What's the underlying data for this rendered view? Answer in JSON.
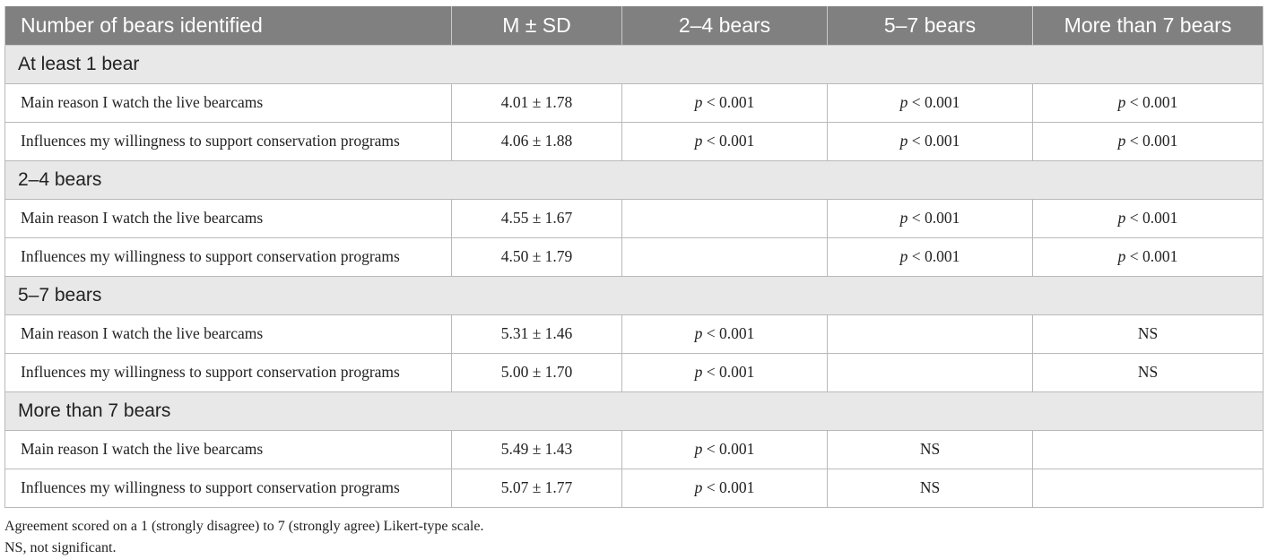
{
  "table": {
    "headers": [
      "Number of bears identified",
      "M ± SD",
      "2–4 bears",
      "5–7 bears",
      "More than 7 bears"
    ],
    "sections": [
      {
        "title": "At least 1 bear",
        "rows": [
          {
            "label": "Main reason I watch the live bearcams",
            "msd": "4.01 ± 1.78",
            "cells": [
              "p < 0.001",
              "p < 0.001",
              "p < 0.001"
            ]
          },
          {
            "label": "Influences my willingness to support conservation programs",
            "msd": "4.06 ± 1.88",
            "cells": [
              "p < 0.001",
              "p < 0.001",
              "p < 0.001"
            ]
          }
        ]
      },
      {
        "title": "2–4 bears",
        "rows": [
          {
            "label": "Main reason I watch the live bearcams",
            "msd": "4.55 ± 1.67",
            "cells": [
              "",
              "p < 0.001",
              "p < 0.001"
            ]
          },
          {
            "label": "Influences my willingness to support conservation programs",
            "msd": "4.50 ± 1.79",
            "cells": [
              "",
              "p < 0.001",
              "p < 0.001"
            ]
          }
        ]
      },
      {
        "title": "5–7 bears",
        "rows": [
          {
            "label": "Main reason I watch the live bearcams",
            "msd": "5.31 ± 1.46",
            "cells": [
              "p < 0.001",
              "",
              "NS"
            ]
          },
          {
            "label": "Influences my willingness to support conservation programs",
            "msd": "5.00 ± 1.70",
            "cells": [
              "p < 0.001",
              "",
              "NS"
            ]
          }
        ]
      },
      {
        "title": "More than 7 bears",
        "rows": [
          {
            "label": "Main reason I watch the live bearcams",
            "msd": "5.49 ± 1.43",
            "cells": [
              "p < 0.001",
              "NS",
              ""
            ]
          },
          {
            "label": "Influences my willingness to support conservation programs",
            "msd": "5.07 ± 1.77",
            "cells": [
              "p < 0.001",
              "NS",
              ""
            ]
          }
        ]
      }
    ]
  },
  "footnotes": [
    "Agreement scored on a 1 (strongly disagree) to 7 (strongly agree) Likert-type scale.",
    "NS, not significant."
  ]
}
